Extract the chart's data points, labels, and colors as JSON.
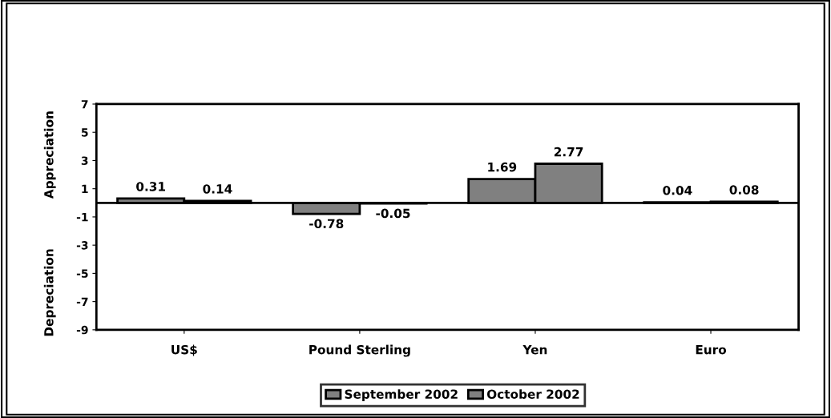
{
  "chart_data": {
    "type": "bar",
    "ylabel": "Appreciation",
    "annotations": [
      "Depreciation"
    ],
    "categories": [
      "US$",
      "Pound Sterling",
      "Yen",
      "Euro"
    ],
    "series": [
      {
        "name": "September 2002",
        "color": "#808080",
        "values": [
          0.31,
          -0.78,
          1.69,
          0.04
        ]
      },
      {
        "name": "October 2002",
        "color": "#808080",
        "values": [
          0.14,
          -0.05,
          2.77,
          0.08
        ]
      }
    ],
    "ylim": [
      -9,
      7
    ],
    "yticks": [
      -9,
      -7,
      -5,
      -3,
      -1,
      1,
      3,
      5,
      7
    ],
    "ref_lines": [
      {
        "axis": "y",
        "value": 0,
        "color": "#000000"
      }
    ],
    "data_labels": true,
    "grid": false,
    "legend": "bottom"
  }
}
